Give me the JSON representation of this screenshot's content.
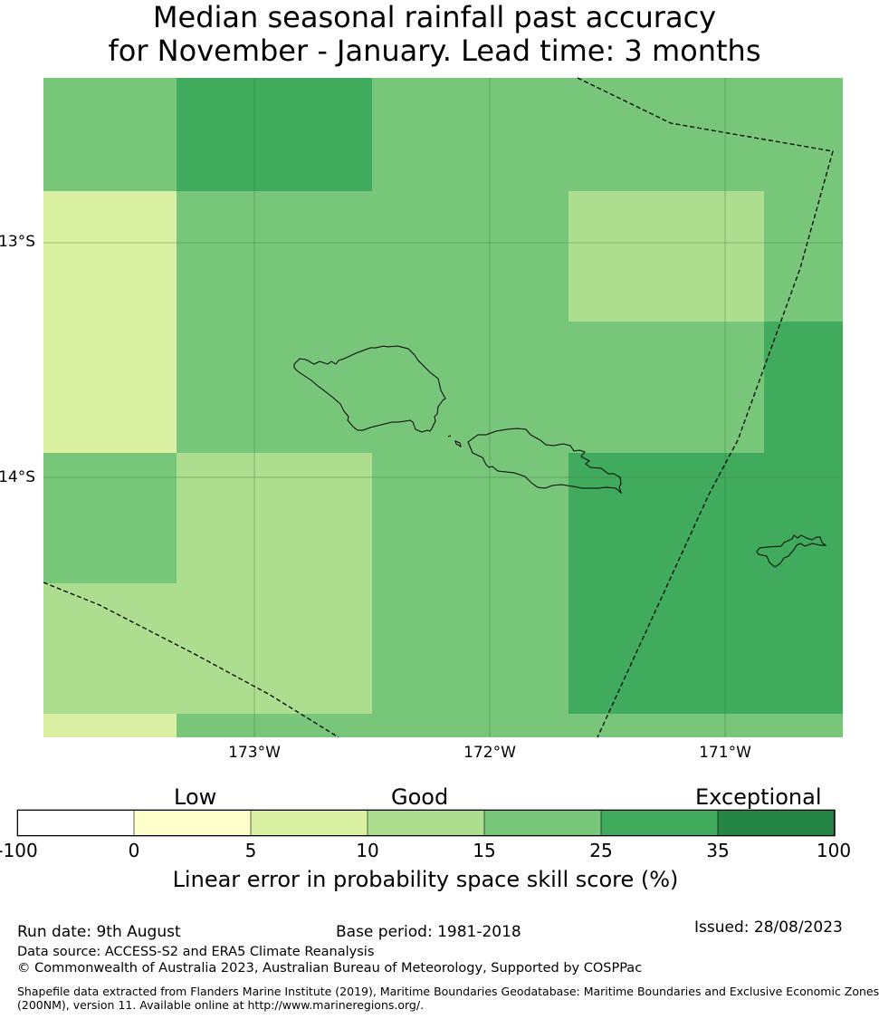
{
  "header": {
    "title_line1": "Median seasonal rainfall past accuracy",
    "title_line2": "for November - January. Lead time: 3 months"
  },
  "map": {
    "lat_labels": [
      "13°S",
      "14°S"
    ],
    "lon_labels": [
      "173°W",
      "172°W",
      "171°W"
    ]
  },
  "colorbar": {
    "categories": {
      "low": "Low",
      "good": "Good",
      "exceptional": "Exceptional"
    },
    "ticks": [
      "-100",
      "0",
      "5",
      "10",
      "15",
      "25",
      "35",
      "100"
    ],
    "colors": [
      "#ffffff",
      "#ffffcc",
      "#d9f0a3",
      "#addd8e",
      "#78c679",
      "#41ab5d",
      "#238443"
    ],
    "label": "Linear error in probability space skill score (%)"
  },
  "footer": {
    "run_date": "Run date: 9th August",
    "base_period": "Base period: 1981-2018",
    "issued": "Issued: 28/08/2023",
    "data_source": "Data source: ACCESS-S2 and ERA5 Climate Reanalysis",
    "copyright": "© Commonwealth of Australia 2023, Australian Bureau of Meteorology, Supported by COSPPac",
    "shapefile_line1": "Shapefile data extracted from Flanders Marine Institute (2019), Maritime Boundaries Geodatabase: Maritime Boundaries and Exclusive Economic Zones",
    "shapefile_line2": "(200NM), version 11. Available online at http://www.marineregions.org/."
  }
}
